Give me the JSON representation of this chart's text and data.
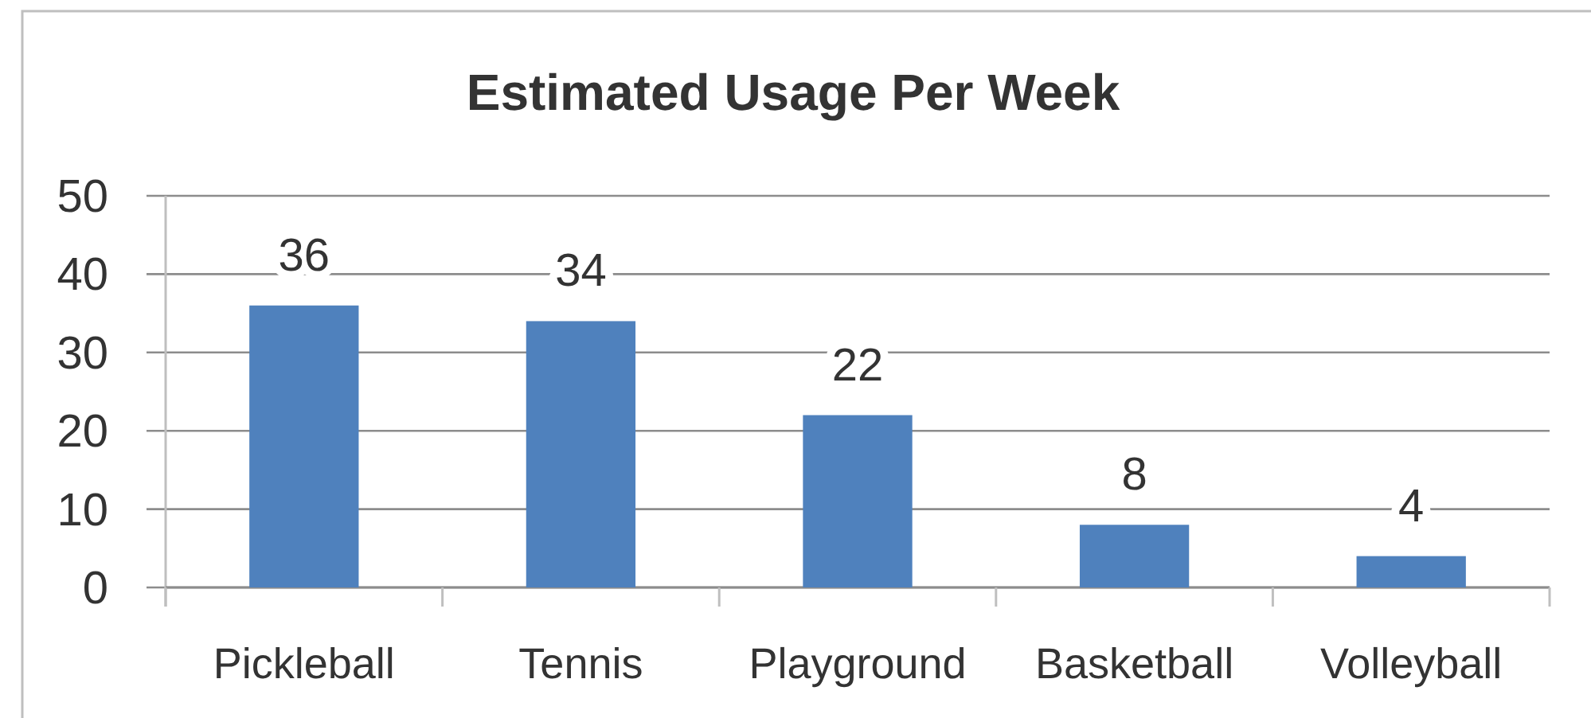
{
  "chart_data": {
    "type": "bar",
    "title": "Estimated Usage Per Week",
    "categories": [
      "Pickleball",
      "Tennis",
      "Playground",
      "Basketball",
      "Volleyball"
    ],
    "values": [
      36,
      34,
      22,
      8,
      4
    ],
    "color": "#4f81bd",
    "ylim": [
      0,
      50
    ],
    "yticks": [
      0,
      10,
      20,
      30,
      40,
      50
    ],
    "grid": "y",
    "data_labels": true
  }
}
